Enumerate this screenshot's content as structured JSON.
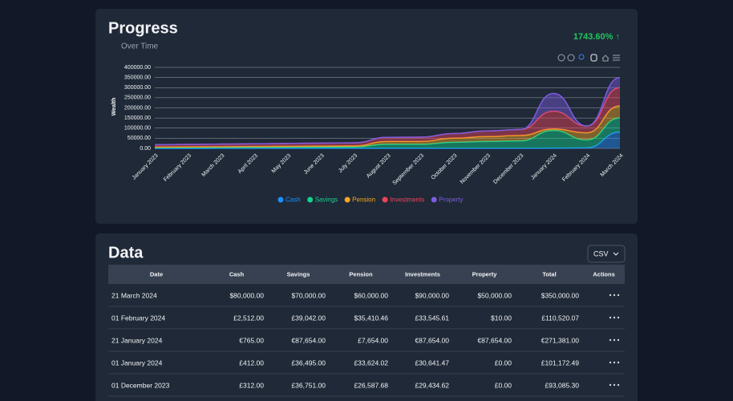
{
  "header": {
    "title": "Progress",
    "change": "1743.60% ↑"
  },
  "chart_data": {
    "type": "area",
    "stacked": true,
    "subtitle": "Over Time",
    "y_label": "Wealth",
    "categories": [
      "January 2023",
      "February 2023",
      "March 2023",
      "April 2023",
      "May 2023",
      "June 2023",
      "July 2023",
      "August 2023",
      "September 2023",
      "October 2023",
      "November 2023",
      "December 2023",
      "January 2024",
      "February 2024",
      "March 2024"
    ],
    "series": [
      {
        "name": "Cash",
        "color": "#1e90ff",
        "values": [
          200,
          200,
          250,
          250,
          250,
          300,
          300,
          300,
          300,
          300,
          300,
          312,
          765,
          2512,
          80000
        ]
      },
      {
        "name": "Savings",
        "color": "#10d48e",
        "values": [
          4000,
          4500,
          5000,
          5500,
          6000,
          6500,
          7000,
          20000,
          20000,
          30000,
          34000,
          36751,
          87654,
          39042,
          70000
        ]
      },
      {
        "name": "Pension",
        "color": "#f5a623",
        "values": [
          2000,
          2500,
          3000,
          3500,
          4000,
          4500,
          5000,
          14000,
          14000,
          20000,
          24000,
          26587.68,
          7654,
          35410.46,
          60000
        ]
      },
      {
        "name": "Investments",
        "color": "#f0445a",
        "values": [
          12000,
          12500,
          13000,
          13500,
          14000,
          14500,
          15000,
          20000,
          21000,
          23000,
          28000,
          29434.62,
          87654,
          33545.61,
          90000
        ]
      },
      {
        "name": "Property",
        "color": "#7c5ce0",
        "values": [
          0,
          0,
          0,
          0,
          0,
          0,
          0,
          0,
          0,
          0,
          0,
          0,
          87654,
          10,
          50000
        ]
      }
    ],
    "ylim": [
      0,
      400000
    ],
    "yticks": [
      {
        "value": 0,
        "label": "0.00"
      },
      {
        "value": 50000,
        "label": "50000.00"
      },
      {
        "value": 100000,
        "label": "100000.00"
      },
      {
        "value": 150000,
        "label": "150000.00"
      },
      {
        "value": 200000,
        "label": "200000.00"
      },
      {
        "value": 250000,
        "label": "250000.00"
      },
      {
        "value": 300000,
        "label": "300000.00"
      },
      {
        "value": 350000,
        "label": "350000.00"
      },
      {
        "value": 400000,
        "label": "400000.00"
      }
    ],
    "grid": true,
    "legend": "bottom"
  },
  "data_section": {
    "title": "Data",
    "export_format": "CSV",
    "table": {
      "columns": [
        "Date",
        "Cash",
        "Savings",
        "Pension",
        "Investments",
        "Property",
        "Total",
        "Actions"
      ],
      "rows": [
        [
          "21 March 2024",
          "$80,000.00",
          "$70,000.00",
          "$60,000.00",
          "$90,000.00",
          "$50,000.00",
          "$350,000.00"
        ],
        [
          "01 February 2024",
          "£2,512.00",
          "£39,042.00",
          "$35,410.46",
          "£33,545.61",
          "$10.00",
          "£110,520.07"
        ],
        [
          "21 January 2024",
          "€765.00",
          "€87,654.00",
          "£7,654.00",
          "€87,654.00",
          "€87,654.00",
          "€271,381.00"
        ],
        [
          "01 January 2024",
          "£412.00",
          "£36,495.00",
          "£33,624.02",
          "£30,641.47",
          "£0.00",
          "£101,172.49"
        ],
        [
          "01 December 2023",
          "£312.00",
          "£36,751.00",
          "£26,587.68",
          "£29,434.62",
          "£0.00",
          "£93,085.30"
        ]
      ]
    }
  }
}
